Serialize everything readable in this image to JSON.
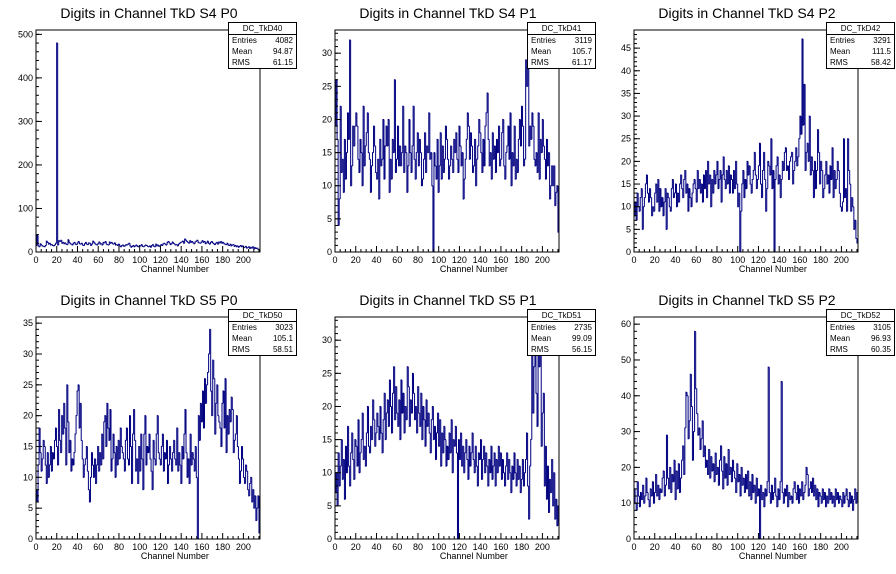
{
  "chart_data": [
    {
      "type": "histogram",
      "title": "Digits in Channel TkD S4 P0",
      "xlabel": "Channel Number",
      "xlim": [
        0,
        216
      ],
      "ylim": [
        0,
        510
      ],
      "xticks": [
        0,
        20,
        40,
        60,
        80,
        100,
        120,
        140,
        160,
        180,
        200
      ],
      "yticks": [
        0,
        100,
        200,
        300,
        400,
        500
      ],
      "stats": {
        "name": "DC_TkD40",
        "entries": "4082",
        "mean": "94.87",
        "rms": "61.15"
      },
      "values": [
        15,
        38,
        14,
        12,
        19,
        16,
        14,
        13,
        12,
        15,
        25,
        22,
        18,
        20,
        16,
        17,
        15,
        14,
        16,
        20,
        480,
        16,
        26,
        24,
        27,
        20,
        22,
        19,
        21,
        18,
        17,
        28,
        22,
        19,
        18,
        16,
        20,
        22,
        18,
        17,
        21,
        24,
        19,
        18,
        20,
        16,
        15,
        19,
        22,
        18,
        17,
        21,
        20,
        15,
        18,
        25,
        22,
        19,
        17,
        16,
        20,
        23,
        18,
        19,
        16,
        22,
        21,
        24,
        18,
        17,
        16,
        23,
        20,
        22,
        19,
        18,
        21,
        16,
        17,
        15,
        18,
        14,
        12,
        15,
        16,
        13,
        14,
        17,
        16,
        18,
        20,
        14,
        11,
        13,
        15,
        12,
        14,
        16,
        13,
        12,
        15,
        14,
        17,
        13,
        12,
        14,
        16,
        15,
        13,
        12,
        14,
        11,
        15,
        17,
        13,
        12,
        18,
        14,
        16,
        13,
        14,
        17,
        15,
        19,
        20,
        18,
        16,
        22,
        24,
        21,
        17,
        19,
        23,
        20,
        18,
        16,
        17,
        14,
        18,
        20,
        22,
        23,
        25,
        20,
        30,
        27,
        24,
        22,
        20,
        26,
        22,
        24,
        21,
        19,
        23,
        25,
        27,
        22,
        21,
        20,
        23,
        26,
        22,
        24,
        19,
        21,
        25,
        20,
        18,
        22,
        24,
        21,
        19,
        17,
        20,
        22,
        18,
        23,
        21,
        24,
        20,
        22,
        19,
        18,
        17,
        20,
        16,
        15,
        18,
        14,
        16,
        17,
        13,
        15,
        12,
        14,
        11,
        13,
        15,
        12,
        14,
        10,
        11,
        13,
        9,
        10,
        12,
        8,
        11,
        9,
        12,
        7,
        10,
        8,
        9,
        6,
        3
      ]
    },
    {
      "type": "histogram",
      "title": "Digits in Channel TkD S4 P1",
      "xlabel": "Channel Number",
      "xlim": [
        0,
        216
      ],
      "ylim": [
        0,
        33.5
      ],
      "xticks": [
        0,
        20,
        40,
        60,
        80,
        100,
        120,
        140,
        160,
        180,
        200
      ],
      "yticks": [
        0,
        5,
        10,
        15,
        20,
        25,
        30
      ],
      "stats": {
        "name": "DC_TkD41",
        "entries": "3119",
        "mean": "105.7",
        "rms": "61.17"
      },
      "values": [
        19,
        26,
        17,
        4,
        8,
        22,
        12,
        14,
        9,
        17,
        11,
        15,
        21,
        17,
        32,
        10,
        13,
        19,
        16,
        19,
        21,
        19,
        14,
        12,
        17,
        15,
        10,
        22,
        13,
        16,
        18,
        21,
        15,
        14,
        9,
        13,
        15,
        19,
        16,
        12,
        11,
        14,
        8,
        17,
        13,
        14,
        20,
        11,
        16,
        19,
        16,
        20,
        9,
        14,
        11,
        17,
        15,
        26,
        12,
        14,
        19,
        13,
        16,
        13,
        15,
        22,
        12,
        16,
        15,
        9,
        13,
        20,
        15,
        12,
        16,
        22,
        14,
        11,
        15,
        18,
        13,
        17,
        15,
        10,
        11,
        14,
        18,
        12,
        16,
        15,
        21,
        14,
        15,
        10,
        0,
        15,
        13,
        11,
        17,
        9,
        13,
        18,
        11,
        16,
        12,
        14,
        19,
        17,
        14,
        11,
        13,
        16,
        14,
        12,
        17,
        15,
        18,
        14,
        12,
        19,
        16,
        13,
        15,
        8,
        11,
        14,
        17,
        21,
        19,
        14,
        18,
        16,
        12,
        13,
        17,
        10,
        14,
        16,
        20,
        18,
        15,
        12,
        17,
        13,
        19,
        21,
        24,
        17,
        13,
        15,
        11,
        18,
        14,
        16,
        12,
        17,
        15,
        19,
        13,
        14,
        18,
        20,
        13,
        11,
        15,
        16,
        19,
        14,
        21,
        10,
        15,
        13,
        19,
        11,
        14,
        12,
        17,
        20,
        16,
        22,
        19,
        13,
        14,
        29,
        25,
        30,
        16,
        19,
        17,
        21,
        19,
        14,
        13,
        15,
        12,
        21,
        11,
        17,
        15,
        20,
        16,
        14,
        11,
        17,
        13,
        15,
        8,
        10,
        13,
        10,
        13,
        7,
        9,
        10,
        3
      ]
    },
    {
      "type": "histogram",
      "title": "Digits in Channel TkD S4 P2",
      "xlabel": "Channel Number",
      "xlim": [
        0,
        216
      ],
      "ylim": [
        0,
        49
      ],
      "xticks": [
        0,
        20,
        40,
        60,
        80,
        100,
        120,
        140,
        160,
        180,
        200
      ],
      "yticks": [
        0,
        5,
        10,
        15,
        20,
        25,
        30,
        35,
        40,
        45
      ],
      "stats": {
        "name": "DC_TkD42",
        "entries": "3291",
        "mean": "111.5",
        "rms": "58.42"
      },
      "values": [
        8,
        11,
        7,
        13,
        10,
        9,
        12,
        14,
        5,
        10,
        12,
        15,
        17,
        13,
        11,
        14,
        12,
        8,
        10,
        9,
        13,
        15,
        11,
        16,
        9,
        14,
        10,
        12,
        8,
        11,
        14,
        5,
        13,
        12,
        10,
        9,
        14,
        16,
        12,
        13,
        15,
        10,
        13,
        11,
        15,
        17,
        14,
        12,
        16,
        18,
        13,
        15,
        9,
        14,
        12,
        10,
        13,
        15,
        16,
        14,
        11,
        18,
        14,
        16,
        13,
        15,
        11,
        17,
        14,
        18,
        12,
        20,
        15,
        17,
        10,
        16,
        13,
        18,
        15,
        17,
        20,
        14,
        16,
        18,
        11,
        17,
        21,
        16,
        14,
        18,
        15,
        19,
        13,
        17,
        16,
        13,
        18,
        14,
        20,
        15,
        10,
        13,
        0,
        9,
        15,
        18,
        12,
        16,
        14,
        20,
        17,
        19,
        15,
        13,
        16,
        18,
        22,
        17,
        14,
        16,
        19,
        24,
        15,
        12,
        18,
        22,
        16,
        9,
        14,
        20,
        19,
        17,
        25,
        14,
        18,
        0,
        16,
        19,
        21,
        15,
        17,
        12,
        16,
        20,
        18,
        22,
        23,
        18,
        19,
        16,
        20,
        21,
        22,
        15,
        18,
        20,
        23,
        19,
        21,
        25,
        30,
        26,
        47,
        28,
        37,
        18,
        22,
        24,
        20,
        30,
        17,
        21,
        18,
        12,
        20,
        14,
        18,
        27,
        22,
        15,
        20,
        18,
        12,
        14,
        17,
        20,
        15,
        17,
        13,
        19,
        16,
        23,
        12,
        18,
        14,
        16,
        20,
        18,
        13,
        10,
        9,
        11,
        25,
        12,
        14,
        9,
        25,
        18,
        15,
        9,
        12,
        10,
        5,
        7,
        3,
        2
      ]
    },
    {
      "type": "histogram",
      "title": "Digits in Channel TkD S5 P0",
      "xlabel": "Channel Number",
      "xlim": [
        0,
        216
      ],
      "ylim": [
        0,
        36
      ],
      "xticks": [
        0,
        20,
        40,
        60,
        80,
        100,
        120,
        140,
        160,
        180,
        200
      ],
      "yticks": [
        0,
        5,
        10,
        15,
        20,
        25,
        30,
        35
      ],
      "stats": {
        "name": "DC_TkD50",
        "entries": "3023",
        "mean": "105.1",
        "rms": "58.51"
      },
      "values": [
        8,
        6,
        12,
        18,
        14,
        11,
        13,
        16,
        15,
        12,
        9,
        14,
        10,
        12,
        15,
        11,
        14,
        13,
        16,
        18,
        15,
        12,
        21,
        16,
        14,
        20,
        17,
        22,
        18,
        12,
        25,
        19,
        14,
        16,
        11,
        13,
        12,
        14,
        17,
        20,
        24,
        25,
        18,
        22,
        16,
        13,
        10,
        12,
        13,
        15,
        11,
        8,
        6,
        10,
        14,
        12,
        10,
        13,
        9,
        12,
        15,
        11,
        14,
        12,
        17,
        13,
        19,
        20,
        15,
        22,
        18,
        16,
        21,
        11,
        13,
        17,
        14,
        10,
        15,
        12,
        16,
        13,
        18,
        15,
        14,
        13,
        11,
        16,
        18,
        13,
        12,
        20,
        15,
        9,
        17,
        21,
        16,
        11,
        13,
        9,
        15,
        11,
        17,
        13,
        8,
        17,
        20,
        12,
        15,
        14,
        17,
        13,
        11,
        8,
        16,
        13,
        12,
        17,
        20,
        14,
        13,
        12,
        15,
        17,
        11,
        14,
        13,
        16,
        9,
        12,
        15,
        13,
        11,
        14,
        16,
        13,
        12,
        18,
        11,
        14,
        12,
        9,
        15,
        13,
        17,
        21,
        14,
        10,
        13,
        9,
        17,
        12,
        14,
        13,
        11,
        15,
        10,
        0,
        20,
        16,
        22,
        19,
        24,
        18,
        26,
        22,
        25,
        27,
        30,
        34,
        24,
        20,
        29,
        26,
        17,
        22,
        25,
        20,
        19,
        18,
        15,
        22,
        24,
        18,
        26,
        14,
        20,
        17,
        21,
        19,
        23,
        21,
        14,
        16,
        17,
        20,
        15,
        13,
        9,
        11,
        15,
        13,
        10,
        9,
        12,
        11,
        8,
        7,
        9,
        10,
        6,
        8,
        5,
        7,
        3,
        5,
        7,
        1
      ]
    },
    {
      "type": "histogram",
      "title": "Digits in Channel TkD S5 P1",
      "xlabel": "Channel Number",
      "xlim": [
        0,
        216
      ],
      "ylim": [
        0,
        33.5
      ],
      "xticks": [
        0,
        20,
        40,
        60,
        80,
        100,
        120,
        140,
        160,
        180,
        200
      ],
      "yticks": [
        0,
        5,
        10,
        15,
        20,
        25,
        30
      ],
      "stats": {
        "name": "DC_TkD51",
        "entries": "2735",
        "mean": "99.09",
        "rms": "56.15"
      },
      "values": [
        7,
        10,
        5,
        13,
        8,
        11,
        15,
        9,
        12,
        6,
        14,
        10,
        17,
        11,
        8,
        13,
        16,
        12,
        9,
        15,
        14,
        11,
        18,
        10,
        13,
        15,
        19,
        12,
        14,
        11,
        16,
        20,
        14,
        13,
        17,
        15,
        21,
        18,
        14,
        16,
        19,
        17,
        15,
        20,
        16,
        13,
        18,
        22,
        15,
        19,
        21,
        17,
        24,
        20,
        16,
        22,
        26,
        18,
        23,
        19,
        17,
        21,
        15,
        24,
        19,
        22,
        16,
        20,
        18,
        26,
        23,
        17,
        21,
        19,
        25,
        22,
        18,
        20,
        16,
        23,
        19,
        17,
        22,
        15,
        20,
        18,
        14,
        21,
        17,
        19,
        16,
        13,
        18,
        20,
        15,
        17,
        12,
        16,
        19,
        14,
        18,
        11,
        16,
        13,
        17,
        15,
        11,
        14,
        12,
        16,
        13,
        18,
        10,
        15,
        14,
        17,
        13,
        0,
        15,
        12,
        16,
        11,
        14,
        10,
        13,
        15,
        12,
        9,
        14,
        11,
        13,
        16,
        12,
        10,
        14,
        11,
        8,
        13,
        12,
        15,
        9,
        12,
        14,
        10,
        13,
        11,
        8,
        12,
        10,
        14,
        9,
        11,
        13,
        8,
        12,
        10,
        14,
        11,
        13,
        9,
        12,
        10,
        8,
        11,
        13,
        9,
        12,
        10,
        7,
        11,
        9,
        13,
        10,
        8,
        12,
        9,
        11,
        7,
        9,
        12,
        8,
        10,
        12,
        16,
        8,
        3,
        11,
        15,
        28,
        19,
        26,
        29,
        22,
        17,
        28,
        26,
        30,
        14,
        19,
        22,
        8,
        14,
        6,
        11,
        4,
        9,
        7,
        12,
        5,
        10,
        3,
        6,
        2,
        5
      ]
    },
    {
      "type": "histogram",
      "title": "Digits in Channel TkD S5 P2",
      "xlabel": "Channel Number",
      "xlim": [
        0,
        216
      ],
      "ylim": [
        0,
        62
      ],
      "xticks": [
        0,
        20,
        40,
        60,
        80,
        100,
        120,
        140,
        160,
        180,
        200
      ],
      "yticks": [
        0,
        10,
        20,
        30,
        40,
        50,
        60
      ],
      "stats": {
        "name": "DC_TkD52",
        "entries": "3105",
        "mean": "96.93",
        "rms": "60.35"
      },
      "values": [
        14,
        10,
        8,
        16,
        12,
        9,
        13,
        11,
        15,
        10,
        12,
        17,
        13,
        11,
        9,
        14,
        12,
        16,
        10,
        13,
        18,
        12,
        15,
        11,
        14,
        13,
        17,
        19,
        12,
        15,
        29,
        17,
        14,
        20,
        13,
        18,
        16,
        22,
        11,
        19,
        14,
        21,
        13,
        17,
        22,
        26,
        18,
        31,
        41,
        40,
        28,
        33,
        46,
        37,
        22,
        30,
        58,
        42,
        35,
        29,
        31,
        25,
        28,
        33,
        23,
        26,
        20,
        22,
        18,
        25,
        17,
        23,
        19,
        21,
        16,
        24,
        18,
        20,
        15,
        22,
        26,
        19,
        14,
        23,
        17,
        21,
        15,
        25,
        18,
        20,
        16,
        22,
        19,
        17,
        13,
        21,
        16,
        18,
        12,
        20,
        15,
        17,
        13,
        18,
        14,
        19,
        12,
        16,
        11,
        18,
        13,
        15,
        10,
        17,
        12,
        14,
        0,
        15,
        11,
        13,
        9,
        14,
        12,
        16,
        48,
        13,
        10,
        15,
        11,
        13,
        17,
        12,
        9,
        14,
        11,
        16,
        44,
        13,
        10,
        14,
        12,
        15,
        9,
        13,
        11,
        12,
        10,
        14,
        16,
        13,
        11,
        15,
        10,
        14,
        12,
        16,
        11,
        13,
        15,
        20,
        18,
        12,
        14,
        16,
        13,
        17,
        12,
        15,
        11,
        14,
        9,
        13,
        12,
        10,
        14,
        11,
        13,
        9,
        12,
        10,
        14,
        11,
        13,
        10,
        12,
        9,
        14,
        11,
        13,
        10,
        12,
        11,
        9,
        13,
        10,
        12,
        14,
        11,
        9,
        13,
        10,
        12,
        8,
        11,
        14,
        10,
        13
      ]
    }
  ]
}
